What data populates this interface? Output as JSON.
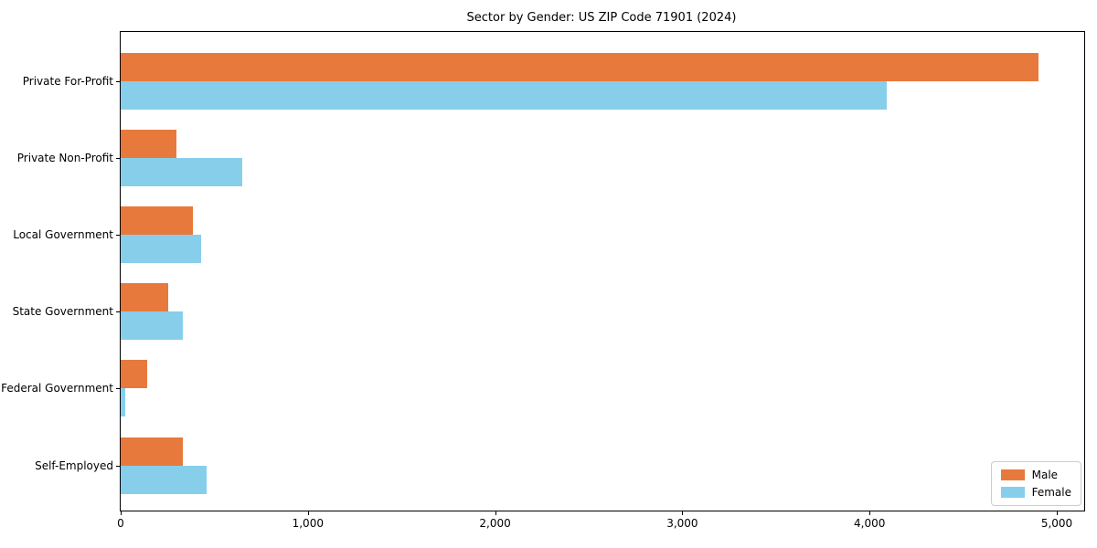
{
  "title": "Sector by Gender: US ZIP Code 71901 (2024)",
  "chart_data": {
    "type": "bar",
    "orientation": "horizontal",
    "title": "Sector by Gender: US ZIP Code 71901 (2024)",
    "categories": [
      "Private For-Profit",
      "Private Non-Profit",
      "Local Government",
      "State Government",
      "Federal Government",
      "Self-Employed"
    ],
    "series": [
      {
        "name": "Male",
        "color": "#e8793c",
        "values": [
          4900,
          300,
          385,
          255,
          140,
          330
        ]
      },
      {
        "name": "Female",
        "color": "#87ceeb",
        "values": [
          4090,
          650,
          430,
          330,
          25,
          460
        ]
      }
    ],
    "xlabel": "",
    "ylabel": "",
    "xlim": [
      0,
      5150
    ],
    "xticks": [
      0,
      1000,
      2000,
      3000,
      4000,
      5000
    ],
    "xtick_labels": [
      "0",
      "1,000",
      "2,000",
      "3,000",
      "4,000",
      "5,000"
    ],
    "grid": false,
    "legend_position": "lower right"
  }
}
